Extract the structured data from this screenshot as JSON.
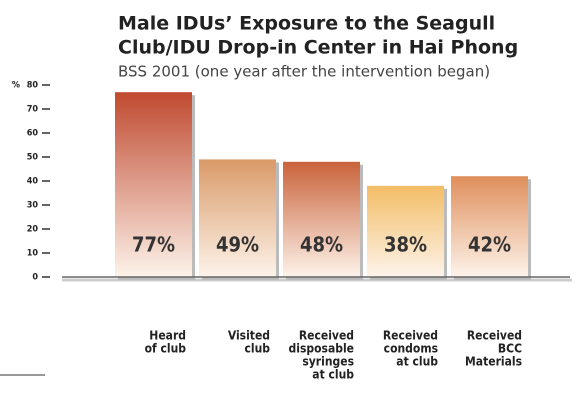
{
  "chart_data": {
    "type": "bar",
    "title": [
      "Male IDUs’ Exposure to the Seagull",
      "Club/IDU Drop-in Center in Hai Phong"
    ],
    "subtitle": "BSS 2001  (one year after the intervention began)",
    "ylabel": "%",
    "categories": [
      [
        "Heard",
        "of club"
      ],
      [
        "Visited",
        "club"
      ],
      [
        "Received",
        "disposable",
        "syringes",
        "at club"
      ],
      [
        "Received",
        "condoms",
        "at club"
      ],
      [
        "Received",
        "BCC",
        "Materials"
      ]
    ],
    "values": [
      77,
      49,
      48,
      38,
      42
    ],
    "value_labels": [
      "77%",
      "49%",
      "48%",
      "38%",
      "42%"
    ],
    "colors": [
      "#c04a30",
      "#d99a68",
      "#c9633a",
      "#f3bd66",
      "#df8f5c"
    ],
    "ylim": [
      0,
      80
    ],
    "yticks": [
      0,
      10,
      20,
      30,
      40,
      50,
      60,
      70,
      80
    ]
  }
}
